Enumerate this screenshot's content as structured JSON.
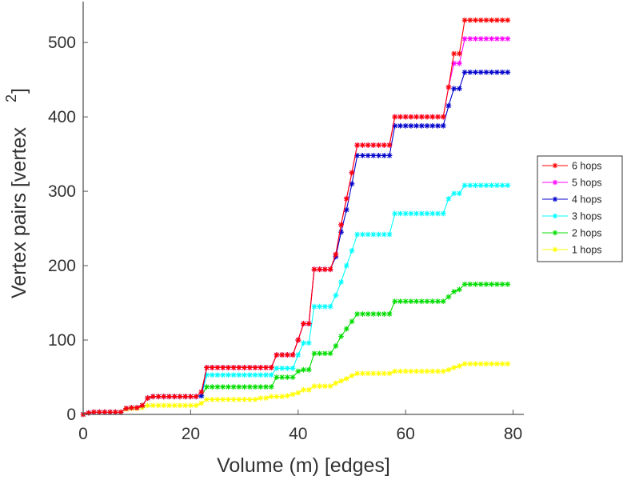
{
  "chart_data": {
    "type": "line",
    "title": "",
    "xlabel": "Volume (m) [edges]",
    "ylabel": "Vertex pairs [vertex",
    "ylabel_superscript": "2",
    "ylabel_close": "]",
    "xlim": [
      0,
      82
    ],
    "ylim": [
      0,
      555
    ],
    "xticks": [
      0,
      20,
      40,
      60,
      80
    ],
    "xtick_labels": [
      "0",
      "20",
      "40",
      "60",
      "80"
    ],
    "yticks": [
      0,
      100,
      200,
      300,
      400,
      500
    ],
    "ytick_labels": [
      "0",
      "100",
      "200",
      "300",
      "400",
      "500"
    ],
    "grid": false,
    "legend_position": "right",
    "x": [
      0,
      1,
      2,
      3,
      4,
      5,
      6,
      7,
      8,
      9,
      10,
      11,
      12,
      13,
      14,
      15,
      16,
      17,
      18,
      19,
      20,
      21,
      22,
      23,
      24,
      25,
      26,
      27,
      28,
      29,
      30,
      31,
      32,
      33,
      34,
      35,
      36,
      37,
      38,
      39,
      40,
      41,
      42,
      43,
      44,
      45,
      46,
      47,
      48,
      49,
      50,
      51,
      52,
      53,
      54,
      55,
      56,
      57,
      58,
      59,
      60,
      61,
      62,
      63,
      64,
      65,
      66,
      67,
      68,
      69,
      70,
      71,
      72,
      73,
      74,
      75,
      76,
      77,
      78,
      79
    ],
    "series": [
      {
        "name": "6 hops",
        "color": "#ff0000",
        "values": [
          0,
          2,
          3,
          3,
          3,
          3,
          3,
          3,
          8,
          9,
          9,
          12,
          22,
          24,
          24,
          24,
          24,
          24,
          24,
          24,
          24,
          24,
          30,
          63,
          63,
          63,
          63,
          63,
          63,
          63,
          63,
          63,
          63,
          63,
          63,
          63,
          80,
          80,
          80,
          80,
          100,
          122,
          122,
          195,
          195,
          195,
          195,
          215,
          255,
          290,
          325,
          362,
          362,
          362,
          362,
          362,
          362,
          362,
          400,
          400,
          400,
          400,
          400,
          400,
          400,
          400,
          400,
          400,
          440,
          485,
          485,
          530,
          530,
          530,
          530,
          530,
          530,
          530,
          530,
          530
        ]
      },
      {
        "name": "5 hops",
        "color": "#ff00ff",
        "values": [
          0,
          2,
          3,
          3,
          3,
          3,
          3,
          3,
          8,
          9,
          9,
          12,
          22,
          24,
          24,
          24,
          24,
          24,
          24,
          24,
          24,
          24,
          30,
          63,
          63,
          63,
          63,
          63,
          63,
          63,
          63,
          63,
          63,
          63,
          63,
          63,
          80,
          80,
          80,
          80,
          100,
          122,
          122,
          195,
          195,
          195,
          195,
          215,
          255,
          290,
          325,
          362,
          362,
          362,
          362,
          362,
          362,
          362,
          400,
          400,
          400,
          400,
          400,
          400,
          400,
          400,
          400,
          400,
          440,
          472,
          472,
          505,
          505,
          505,
          505,
          505,
          505,
          505,
          505,
          505
        ]
      },
      {
        "name": "4 hops",
        "color": "#0000cc",
        "values": [
          0,
          2,
          3,
          3,
          3,
          3,
          3,
          3,
          8,
          9,
          9,
          12,
          22,
          24,
          24,
          24,
          24,
          24,
          24,
          24,
          24,
          24,
          25,
          63,
          63,
          63,
          63,
          63,
          63,
          63,
          63,
          63,
          63,
          63,
          63,
          63,
          80,
          80,
          80,
          80,
          100,
          122,
          122,
          195,
          195,
          195,
          195,
          212,
          245,
          275,
          310,
          348,
          348,
          348,
          348,
          348,
          348,
          348,
          388,
          388,
          388,
          388,
          388,
          388,
          388,
          388,
          388,
          388,
          415,
          438,
          438,
          460,
          460,
          460,
          460,
          460,
          460,
          460,
          460,
          460
        ]
      },
      {
        "name": "3 hops",
        "color": "#00ffff",
        "values": [
          0,
          2,
          3,
          3,
          3,
          3,
          3,
          3,
          8,
          9,
          9,
          12,
          22,
          24,
          24,
          24,
          24,
          24,
          24,
          24,
          24,
          24,
          25,
          53,
          53,
          53,
          53,
          53,
          53,
          53,
          53,
          53,
          53,
          53,
          53,
          53,
          62,
          62,
          62,
          62,
          80,
          96,
          96,
          145,
          145,
          145,
          145,
          160,
          178,
          200,
          220,
          242,
          242,
          242,
          242,
          242,
          242,
          242,
          270,
          270,
          270,
          270,
          270,
          270,
          270,
          270,
          270,
          270,
          290,
          297,
          297,
          308,
          308,
          308,
          308,
          308,
          308,
          308,
          308,
          308
        ]
      },
      {
        "name": "2 hops",
        "color": "#00dd00",
        "values": [
          0,
          2,
          3,
          3,
          3,
          3,
          3,
          3,
          8,
          9,
          9,
          12,
          22,
          24,
          24,
          24,
          24,
          24,
          24,
          24,
          24,
          24,
          25,
          37,
          37,
          37,
          37,
          37,
          37,
          37,
          37,
          37,
          37,
          37,
          37,
          37,
          50,
          50,
          50,
          50,
          58,
          60,
          60,
          82,
          82,
          82,
          82,
          92,
          105,
          115,
          125,
          135,
          135,
          135,
          135,
          135,
          135,
          135,
          152,
          152,
          152,
          152,
          152,
          152,
          152,
          152,
          152,
          152,
          158,
          165,
          168,
          175,
          175,
          175,
          175,
          175,
          175,
          175,
          175,
          175
        ]
      },
      {
        "name": "1 hops",
        "color": "#ffff00",
        "values": [
          0,
          2,
          3,
          3,
          3,
          3,
          3,
          3,
          7,
          8,
          8,
          9,
          12,
          12,
          12,
          12,
          12,
          12,
          12,
          12,
          12,
          12,
          15,
          20,
          20,
          20,
          20,
          20,
          20,
          20,
          20,
          20,
          20,
          22,
          22,
          24,
          24,
          24,
          25,
          27,
          29,
          33,
          33,
          38,
          38,
          38,
          38,
          42,
          45,
          48,
          52,
          55,
          55,
          55,
          55,
          55,
          55,
          55,
          58,
          58,
          58,
          58,
          58,
          58,
          58,
          58,
          58,
          58,
          60,
          63,
          65,
          68,
          68,
          68,
          68,
          68,
          68,
          68,
          68,
          68
        ]
      }
    ]
  }
}
